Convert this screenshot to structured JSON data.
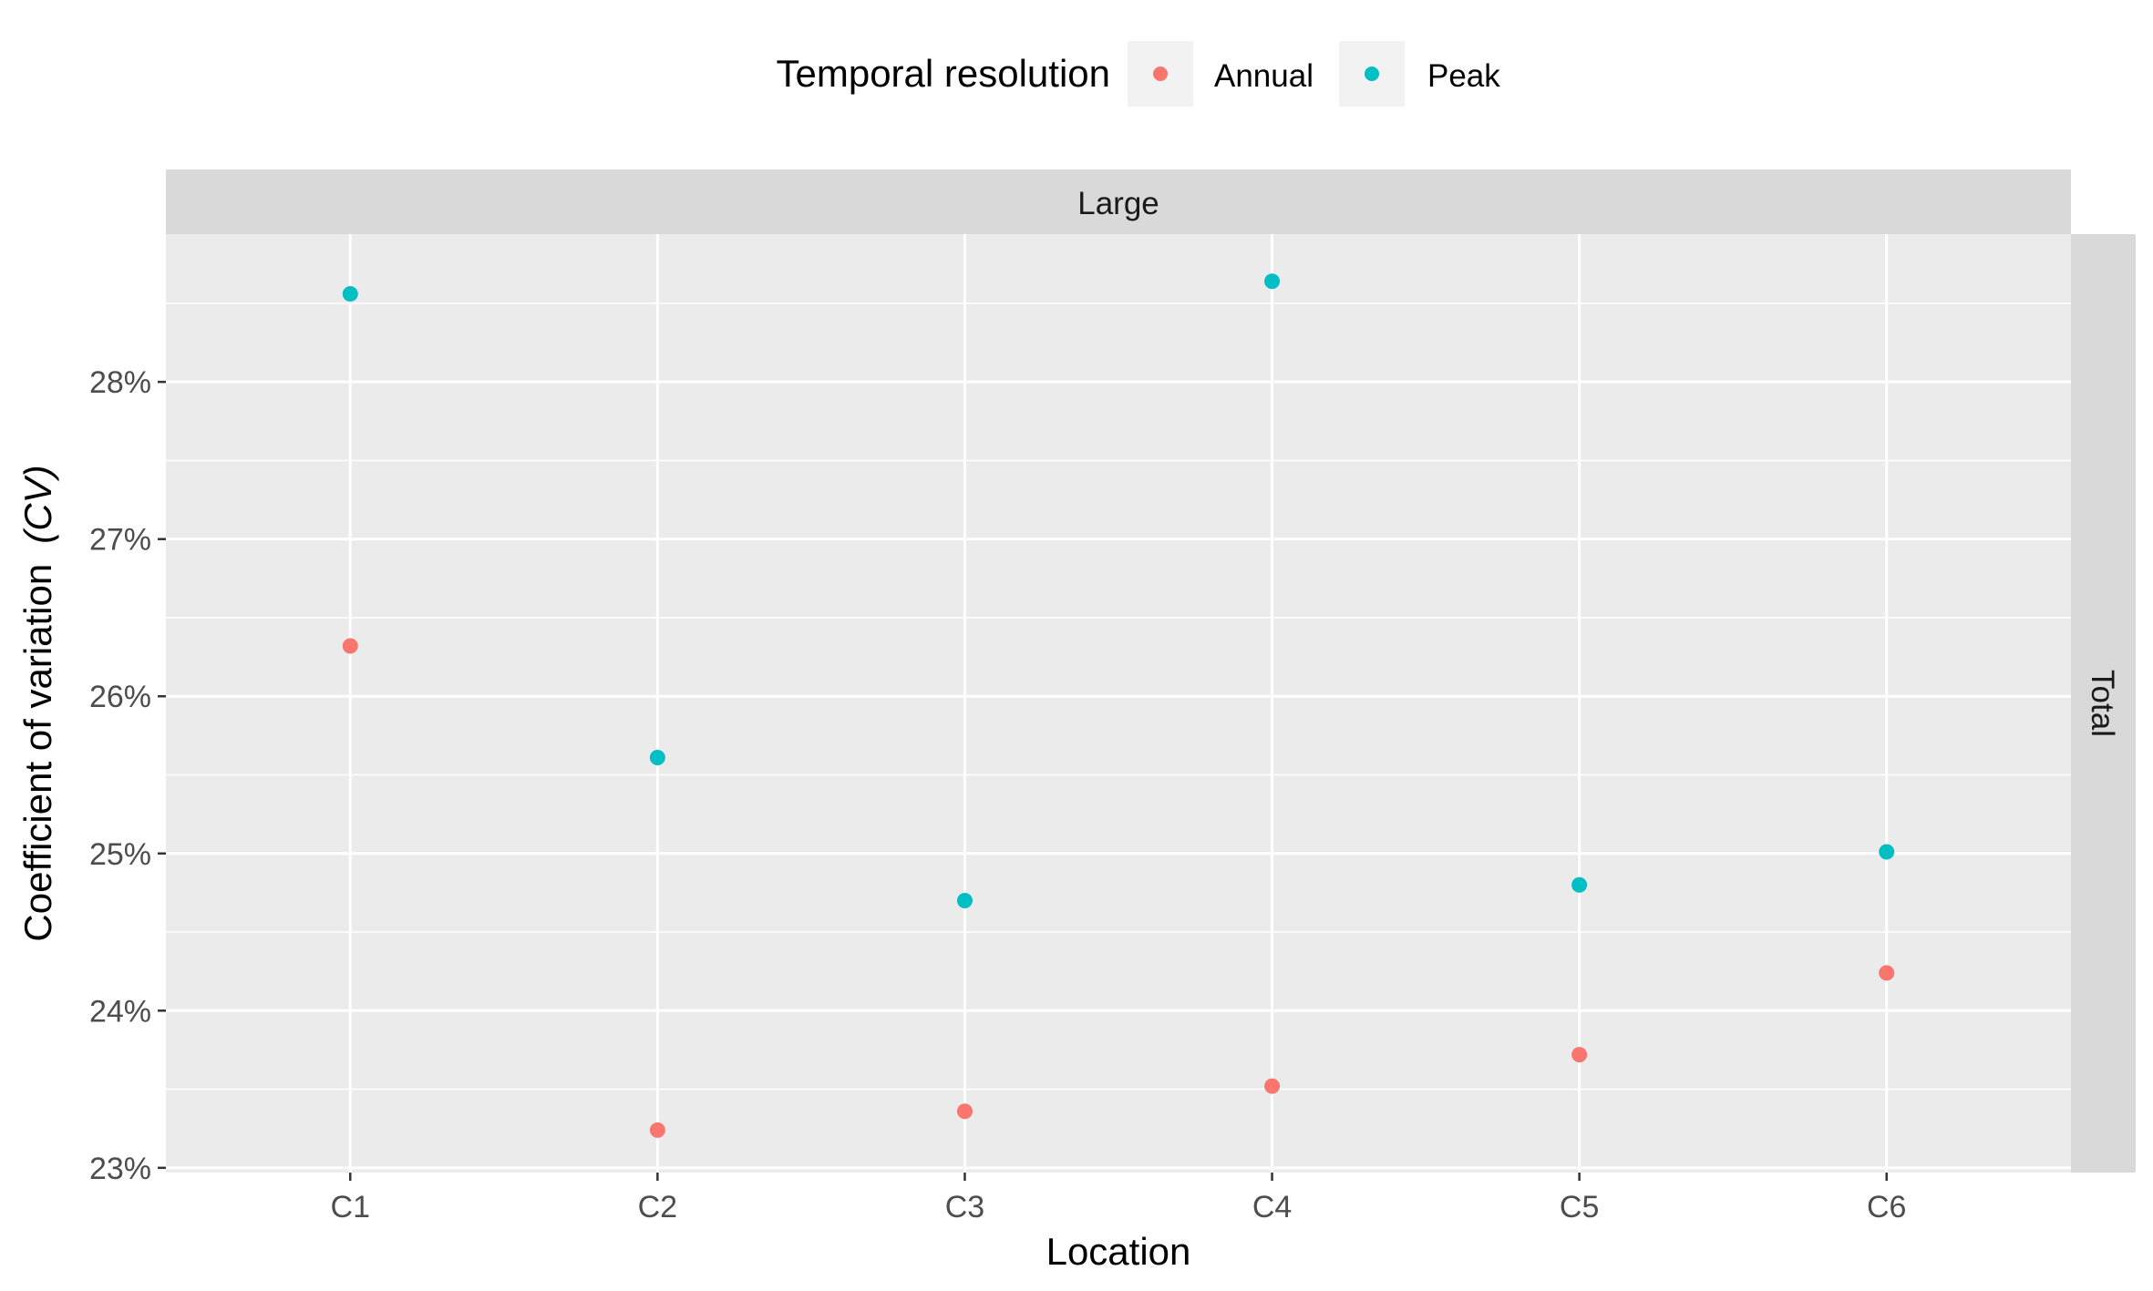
{
  "chart_data": {
    "type": "scatter",
    "legend": {
      "title": "Temporal resolution",
      "position": "top",
      "items": [
        {
          "label": "Annual",
          "color": "#F8766D"
        },
        {
          "label": "Peak",
          "color": "#00BFC4"
        }
      ]
    },
    "facet_col_label": "Large",
    "facet_row_label": "Total",
    "xlabel": "Location",
    "ylabel_main": "Coefficient of variation",
    "ylabel_italic": "(CV)",
    "categories": [
      "C1",
      "C2",
      "C3",
      "C4",
      "C5",
      "C6"
    ],
    "ylim": [
      22.97,
      28.94
    ],
    "yticks": [
      23,
      24,
      25,
      26,
      27,
      28
    ],
    "ytick_labels": [
      "23%",
      "24%",
      "25%",
      "26%",
      "27%",
      "28%"
    ],
    "grid": true,
    "series": [
      {
        "name": "Annual",
        "color": "#F8766D",
        "values": [
          26.32,
          23.24,
          23.36,
          23.52,
          23.72,
          24.24
        ]
      },
      {
        "name": "Peak",
        "color": "#00BFC4",
        "values": [
          28.56,
          25.61,
          24.7,
          28.64,
          24.8,
          25.01
        ]
      }
    ]
  }
}
